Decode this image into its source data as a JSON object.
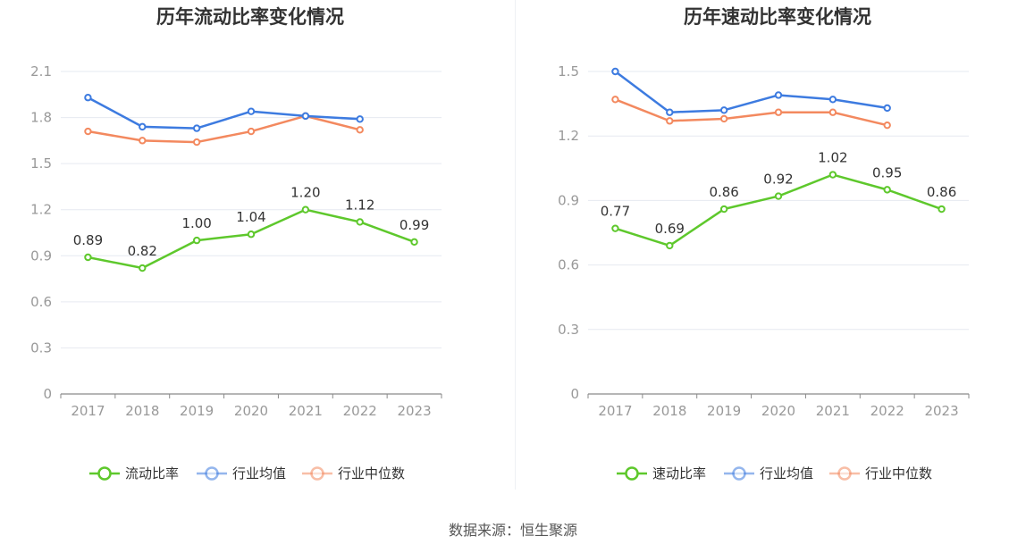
{
  "source": "数据来源：恒生聚源",
  "chart_data": [
    {
      "type": "line",
      "title": "历年流动比率变化情况",
      "categories": [
        "2017",
        "2018",
        "2019",
        "2020",
        "2021",
        "2022",
        "2023"
      ],
      "ylim": [
        0,
        2.1
      ],
      "yticks": [
        0,
        0.3,
        0.6,
        0.9,
        1.2,
        1.5,
        1.8,
        2.1
      ],
      "ytick_labels": [
        "0",
        "0.3",
        "0.6",
        "0.9",
        "1.2",
        "1.5",
        "1.8",
        "2.1"
      ],
      "legend_position": "bottom",
      "series": [
        {
          "name": "流动比率",
          "color": "#5ec82c",
          "labeled": true,
          "values": [
            0.89,
            0.82,
            1.0,
            1.04,
            1.2,
            1.12,
            0.99
          ],
          "labels": [
            "0.89",
            "0.82",
            "1.00",
            "1.04",
            "1.20",
            "1.12",
            "0.99"
          ]
        },
        {
          "name": "行业均值",
          "color": "#3d7be0",
          "labeled": false,
          "values": [
            1.93,
            1.74,
            1.73,
            1.84,
            1.81,
            1.79,
            null
          ]
        },
        {
          "name": "行业中位数",
          "color": "#f3895f",
          "labeled": false,
          "values": [
            1.71,
            1.65,
            1.64,
            1.71,
            1.81,
            1.72,
            null
          ]
        }
      ]
    },
    {
      "type": "line",
      "title": "历年速动比率变化情况",
      "categories": [
        "2017",
        "2018",
        "2019",
        "2020",
        "2021",
        "2022",
        "2023"
      ],
      "ylim": [
        0,
        1.5
      ],
      "yticks": [
        0,
        0.3,
        0.6,
        0.9,
        1.2,
        1.5
      ],
      "ytick_labels": [
        "0",
        "0.3",
        "0.6",
        "0.9",
        "1.2",
        "1.5"
      ],
      "legend_position": "bottom",
      "series": [
        {
          "name": "速动比率",
          "color": "#5ec82c",
          "labeled": true,
          "values": [
            0.77,
            0.69,
            0.86,
            0.92,
            1.02,
            0.95,
            0.86
          ],
          "labels": [
            "0.77",
            "0.69",
            "0.86",
            "0.92",
            "1.02",
            "0.95",
            "0.86"
          ]
        },
        {
          "name": "行业均值",
          "color": "#3d7be0",
          "labeled": false,
          "values": [
            1.5,
            1.31,
            1.32,
            1.39,
            1.37,
            1.33,
            null
          ]
        },
        {
          "name": "行业中位数",
          "color": "#f3895f",
          "labeled": false,
          "values": [
            1.37,
            1.27,
            1.28,
            1.31,
            1.31,
            1.25,
            null
          ]
        }
      ]
    }
  ]
}
